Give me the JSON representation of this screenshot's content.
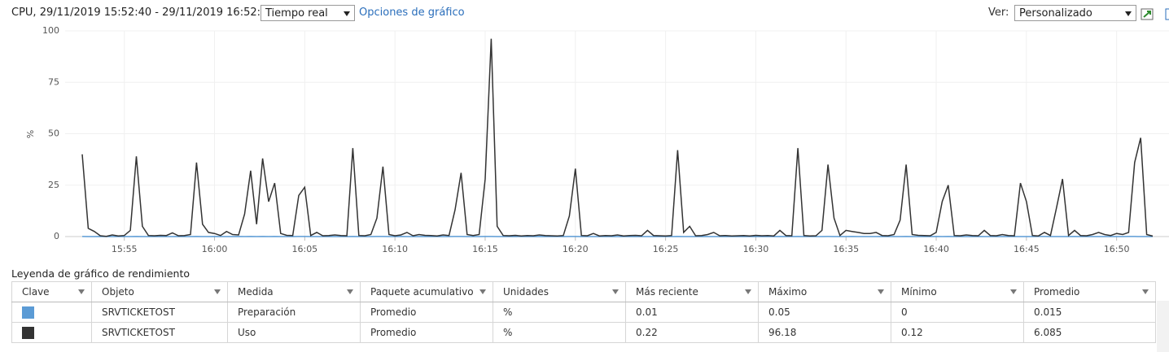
{
  "header": {
    "title": "CPU, 29/11/2019 15:52:40 - 29/11/2019 16:52:00",
    "period": "Tiempo real",
    "options_link": "Opciones de gráfico",
    "view_label": "Ver:",
    "view": "Personalizado"
  },
  "chart_data": {
    "type": "line",
    "ylabel": "%",
    "ylim": [
      0,
      100
    ],
    "yticks": [
      0,
      25,
      50,
      75,
      100
    ],
    "grid": true,
    "categories": [
      null,
      null,
      null,
      null,
      null,
      null,
      null,
      "15:55",
      null,
      null,
      null,
      null,
      null,
      null,
      null,
      null,
      null,
      null,
      null,
      null,
      null,
      null,
      "16:00",
      null,
      null,
      null,
      null,
      null,
      null,
      null,
      null,
      null,
      null,
      null,
      null,
      null,
      null,
      "16:05",
      null,
      null,
      null,
      null,
      null,
      null,
      null,
      null,
      null,
      null,
      null,
      null,
      null,
      null,
      "16:10",
      null,
      null,
      null,
      null,
      null,
      null,
      null,
      null,
      null,
      null,
      null,
      null,
      null,
      null,
      "16:15",
      null,
      null,
      null,
      null,
      null,
      null,
      null,
      null,
      null,
      null,
      null,
      null,
      null,
      null,
      "16:20",
      null,
      null,
      null,
      null,
      null,
      null,
      null,
      null,
      null,
      null,
      null,
      null,
      null,
      null,
      "16:25",
      null,
      null,
      null,
      null,
      null,
      null,
      null,
      null,
      null,
      null,
      null,
      null,
      null,
      null,
      "16:30",
      null,
      null,
      null,
      null,
      null,
      null,
      null,
      null,
      null,
      null,
      null,
      null,
      null,
      null,
      "16:35",
      null,
      null,
      null,
      null,
      null,
      null,
      null,
      null,
      null,
      null,
      null,
      null,
      null,
      null,
      "16:40",
      null,
      null,
      null,
      null,
      null,
      null,
      null,
      null,
      null,
      null,
      null,
      null,
      null,
      null,
      "16:45",
      null,
      null,
      null,
      null,
      null,
      null,
      null,
      null,
      null,
      null,
      null,
      null,
      null,
      null,
      "16:50",
      null,
      null,
      null,
      null,
      null,
      null
    ],
    "series": [
      {
        "name": "Preparación",
        "color": "#5b9bd5",
        "values": [
          0.02,
          0.01,
          0.01,
          0.02,
          0.01,
          0.01,
          0.02,
          0.01,
          0.01,
          0.05,
          0.01,
          0.01,
          0.02,
          0.01,
          0.01,
          0.01,
          0.02,
          0.01,
          0.01,
          0.03,
          0.01,
          0.01,
          0.02,
          0.01,
          0.01,
          0.01,
          0.02,
          0.01,
          0.02,
          0.01,
          0.03,
          0.01,
          0.02,
          0.01,
          0.01,
          0.01,
          0.02,
          0.02,
          0.01,
          0.01,
          0.01,
          0.02,
          0.01,
          0.01,
          0.01,
          0.03,
          0.01,
          0.01,
          0.01,
          0.02,
          0.03,
          0.01,
          0.01,
          0.02,
          0.01,
          0.01,
          0.01,
          0.02,
          0.01,
          0.01,
          0.01,
          0.01,
          0.02,
          0.02,
          0.01,
          0.01,
          0.01,
          0.02,
          0.04,
          0.01,
          0.01,
          0.01,
          0.02,
          0.01,
          0.01,
          0.01,
          0.02,
          0.01,
          0.01,
          0.01,
          0.01,
          0.02,
          0.02,
          0.01,
          0.01,
          0.01,
          0.01,
          0.02,
          0.01,
          0.01,
          0.01,
          0.02,
          0.01,
          0.01,
          0.01,
          0.01,
          0.02,
          0.01,
          0.01,
          0.03,
          0.01,
          0.01,
          0.01,
          0.02,
          0.01,
          0.01,
          0.01,
          0.01,
          0.02,
          0.01,
          0.01,
          0.01,
          0.02,
          0.01,
          0.01,
          0.01,
          0.02,
          0.01,
          0.01,
          0.03,
          0.01,
          0.01,
          0.01,
          0.01,
          0.02,
          0.01,
          0.01,
          0.01,
          0.02,
          0.01,
          0.01,
          0.01,
          0.01,
          0.02,
          0.01,
          0.01,
          0.01,
          0.02,
          0.01,
          0.01,
          0.01,
          0.01,
          0.02,
          0.01,
          0.02,
          0.01,
          0.01,
          0.01,
          0.01,
          0.02,
          0.01,
          0.01,
          0.01,
          0.01,
          0.02,
          0.01,
          0.01,
          0.01,
          0.01,
          0.02,
          0.02,
          0.01,
          0.01,
          0.01,
          0.01,
          0.02,
          0.01,
          0.02,
          0.01,
          0.01,
          0.01,
          0.01,
          0.01,
          0.01,
          0.02,
          0.03,
          0.01,
          0.01,
          0.01
        ]
      },
      {
        "name": "Uso",
        "color": "#333333",
        "values": [
          40,
          4,
          2.5,
          0.4,
          0.12,
          0.8,
          0.3,
          0.5,
          3,
          39,
          5,
          0.5,
          0.4,
          0.6,
          0.5,
          1.8,
          0.4,
          0.5,
          1,
          36,
          6,
          2,
          1.5,
          0.5,
          2.5,
          1,
          0.8,
          11,
          32,
          6,
          38,
          17,
          26,
          1.5,
          0.6,
          0.5,
          20,
          24,
          0.5,
          2,
          0.4,
          0.5,
          0.8,
          0.5,
          0.4,
          43,
          0.5,
          0.4,
          1,
          9,
          34,
          1,
          0.4,
          0.8,
          2,
          0.4,
          1,
          0.6,
          0.5,
          0.3,
          0.8,
          0.5,
          13,
          31,
          1,
          0.5,
          1,
          28,
          96.18,
          5,
          0.5,
          0.4,
          0.6,
          0.3,
          0.5,
          0.4,
          0.8,
          0.5,
          0.4,
          0.3,
          0.5,
          10,
          33,
          0.5,
          0.4,
          1.5,
          0.3,
          0.5,
          0.4,
          0.8,
          0.3,
          0.5,
          0.6,
          0.4,
          3,
          0.5,
          0.4,
          0.3,
          0.5,
          42,
          2,
          5,
          0.4,
          0.5,
          1,
          2,
          0.4,
          0.5,
          0.3,
          0.4,
          0.5,
          0.3,
          0.6,
          0.4,
          0.5,
          0.3,
          3,
          0.5,
          0.4,
          43,
          0.5,
          0.3,
          0.4,
          3,
          35,
          9,
          0.5,
          3,
          2.5,
          2,
          1.5,
          1.5,
          2,
          0.5,
          0.4,
          1,
          8,
          35,
          1,
          0.6,
          0.5,
          0.4,
          2,
          17,
          25,
          0.5,
          0.4,
          0.8,
          0.5,
          0.4,
          3,
          0.5,
          0.4,
          1,
          0.5,
          0.4,
          26,
          17,
          0.5,
          0.3,
          2,
          0.5,
          14,
          28,
          0.5,
          3,
          0.5,
          0.4,
          1,
          2,
          1,
          0.5,
          1.5,
          1,
          2,
          36,
          48,
          1,
          0.22
        ]
      }
    ]
  },
  "legend": {
    "title": "Leyenda de gráfico de rendimiento",
    "columns": [
      "Clave",
      "Objeto",
      "Medida",
      "Paquete acumulativo",
      "Unidades",
      "Más reciente",
      "Máximo",
      "Mínimo",
      "Promedio"
    ],
    "rows": [
      [
        "SRVTICKETOST",
        "Preparación",
        "Promedio",
        "%",
        "0.01",
        "0.05",
        "0",
        "0.015"
      ],
      [
        "SRVTICKETOST",
        "Uso",
        "Promedio",
        "%",
        "0.22",
        "96.18",
        "0.12",
        "6.085"
      ]
    ]
  }
}
